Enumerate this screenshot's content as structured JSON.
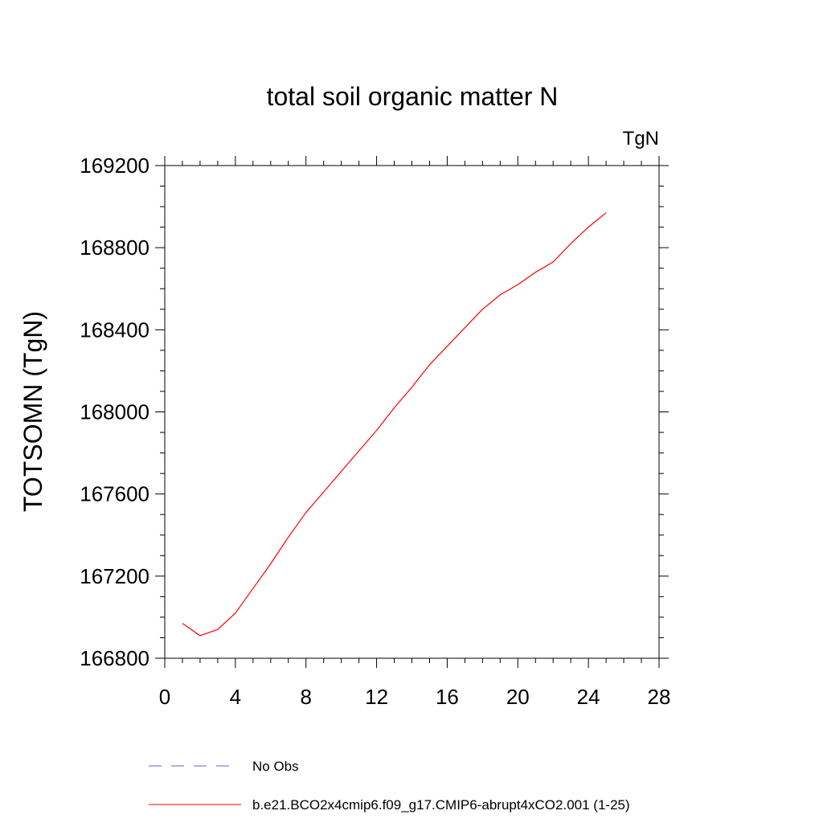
{
  "chart_data": {
    "type": "line",
    "title": "total soil organic matter N",
    "units_label": "TgN",
    "ylabel": "TOTSOMN  (TgN)",
    "xlabel": "",
    "xlim": [
      0,
      28
    ],
    "ylim": [
      166800,
      169200
    ],
    "x_ticks": [
      0,
      4,
      8,
      12,
      16,
      20,
      24,
      28
    ],
    "y_ticks": [
      166800,
      167200,
      167600,
      168000,
      168400,
      168800,
      169200
    ],
    "x_tick_labels": [
      "0",
      "4",
      "8",
      "12",
      "16",
      "20",
      "24",
      "28"
    ],
    "y_tick_labels": [
      "166800",
      "167200",
      "167600",
      "168000",
      "168400",
      "168800",
      "169200"
    ],
    "grid": false,
    "legend_position": "bottom",
    "series": [
      {
        "name": "b.e21.BCO2x4cmip6.f09_g17.CMIP6-abrupt4xCO2.001 (1-25)",
        "color": "#ff0000",
        "dash": "solid",
        "x": [
          1,
          2,
          3,
          4,
          5,
          6,
          7,
          8,
          9,
          10,
          11,
          12,
          13,
          14,
          15,
          16,
          17,
          18,
          19,
          20,
          21,
          22,
          23,
          24,
          25
        ],
        "y": [
          166970,
          166910,
          166940,
          167020,
          167140,
          167260,
          167390,
          167510,
          167610,
          167710,
          167810,
          167910,
          168020,
          168120,
          168230,
          168320,
          168410,
          168500,
          168570,
          168620,
          168680,
          168730,
          168820,
          168900,
          168970
        ]
      }
    ],
    "legend": [
      {
        "label": "No Obs",
        "color": "#6060c8",
        "dash": "dashed"
      },
      {
        "label": "b.e21.BCO2x4cmip6.f09_g17.CMIP6-abrupt4xCO2.001 (1-25)",
        "color": "#ff0000",
        "dash": "solid"
      }
    ]
  }
}
